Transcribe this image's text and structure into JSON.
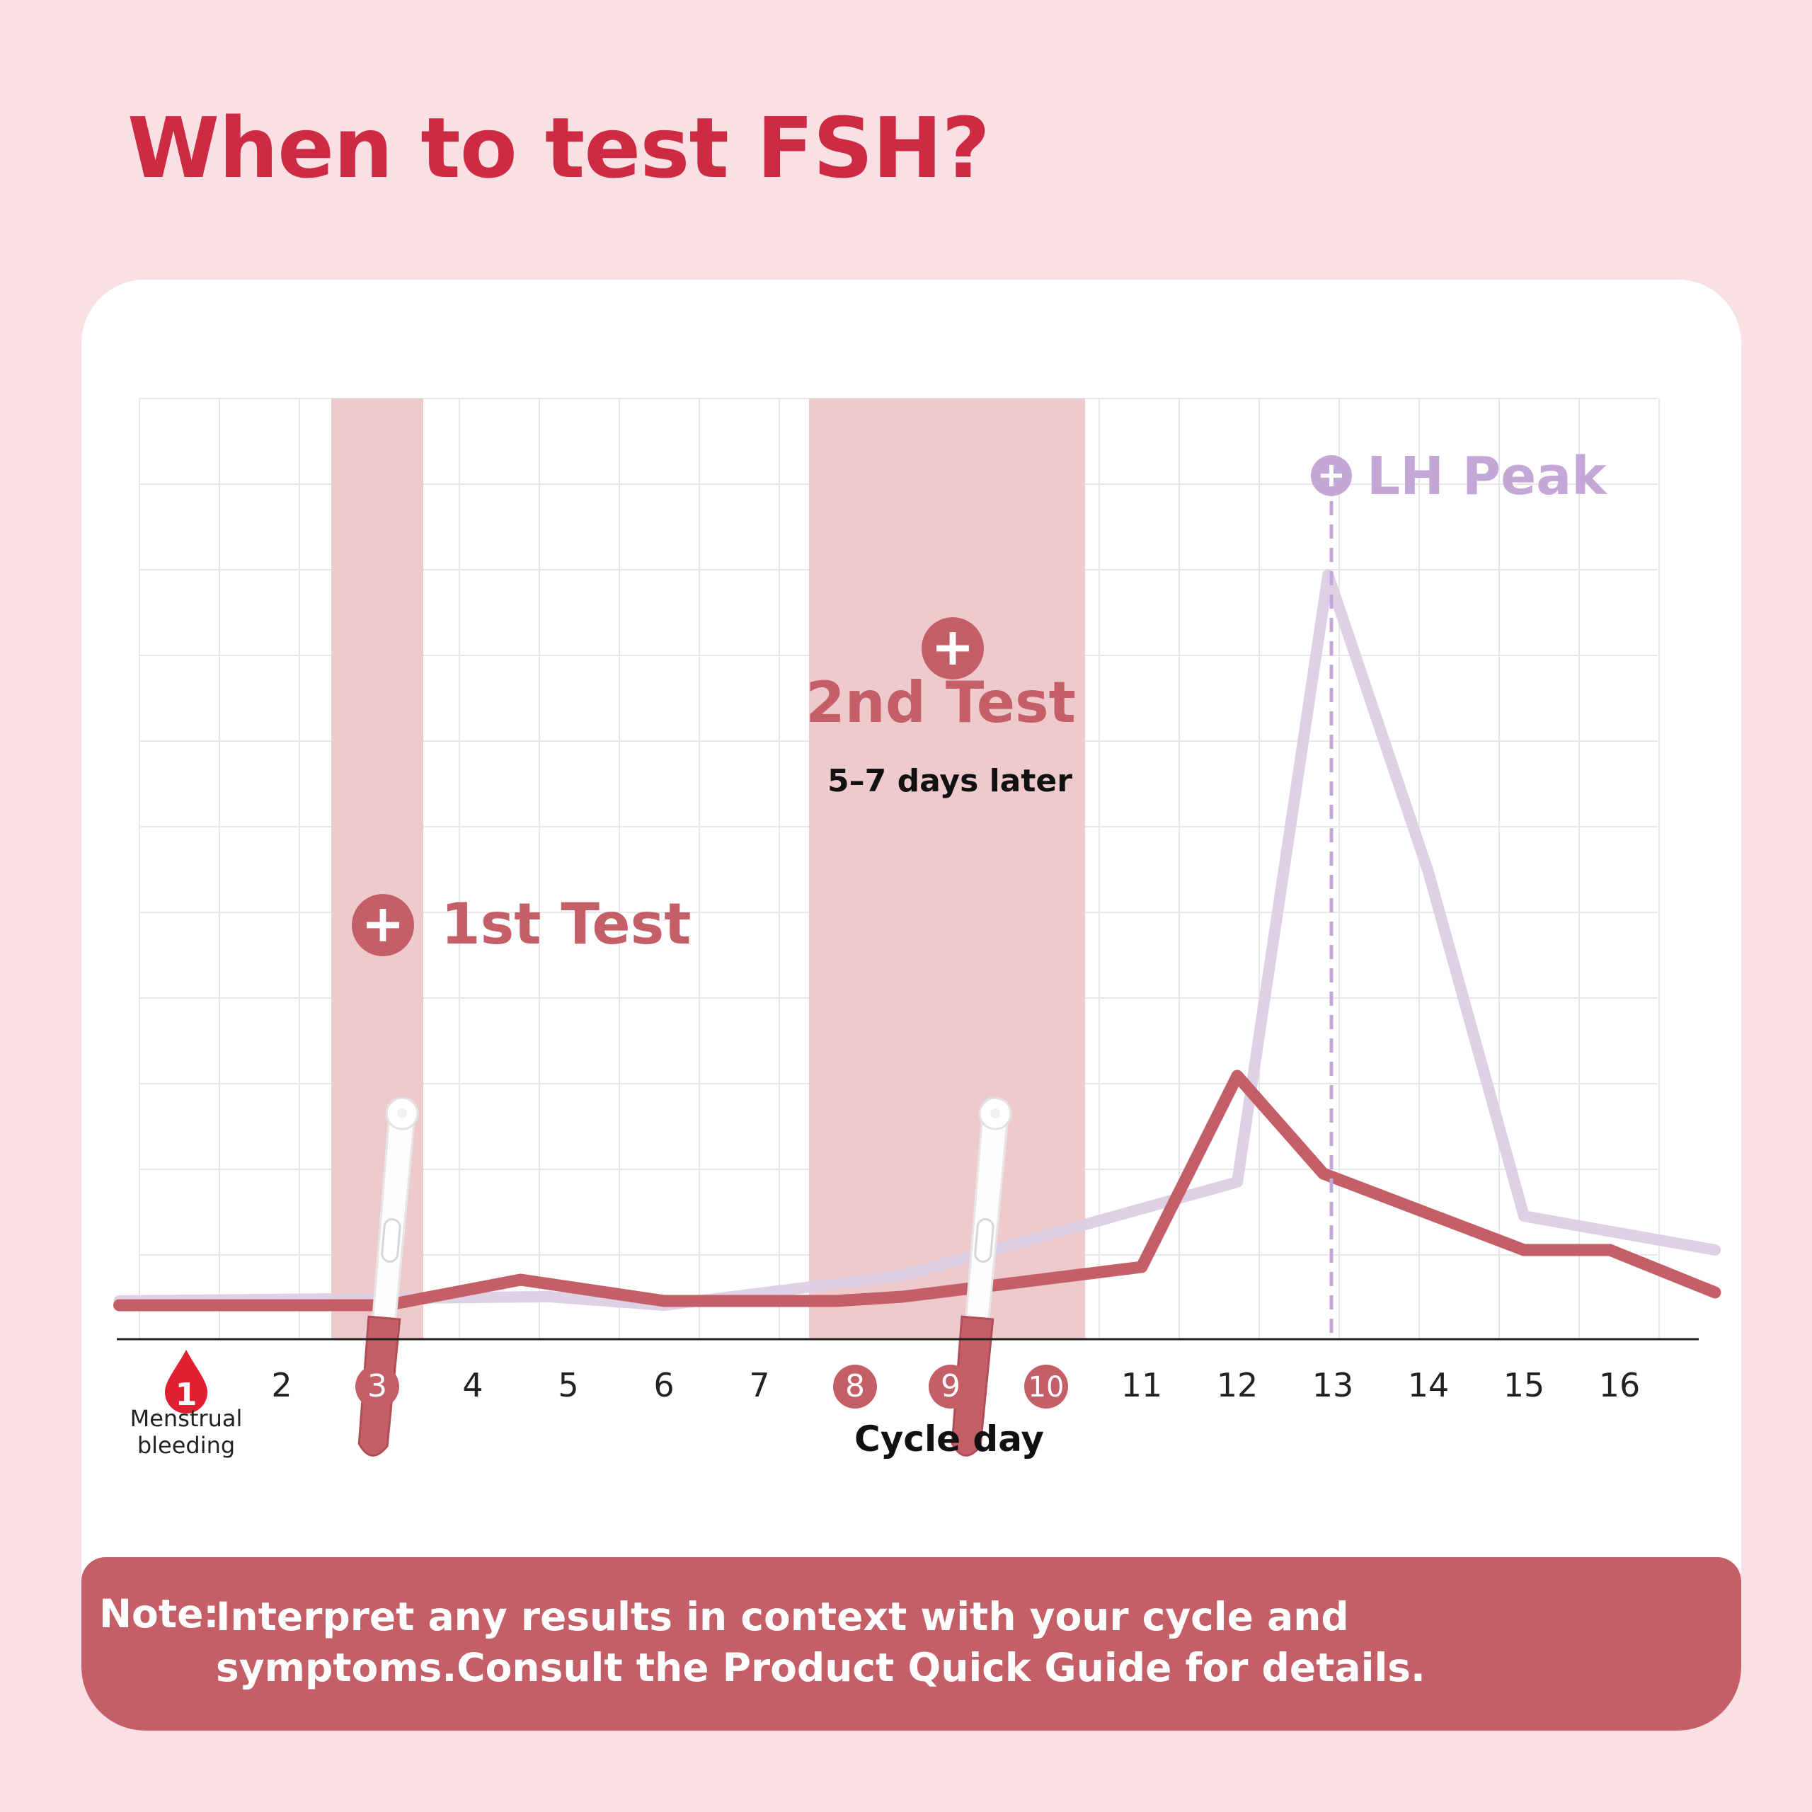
{
  "title": "When to test FSH?",
  "note": {
    "label": "Note:",
    "text": "Interpret any results in context with your cycle and symptoms.Consult  the Product Quick Guide for details."
  },
  "colors": {
    "background": "#f8e0e4",
    "title": "#cf2a43",
    "fsh_line": "#c45e67",
    "lh_line": "#dccfe4",
    "highlight_band": "#efcacd",
    "lh_label": "#c3a7d6",
    "menstrual_drop": "#e02030"
  },
  "icons": [
    "blood-drop-icon",
    "plus-circle-icon",
    "test-stick-icon"
  ],
  "annotations": {
    "first_test": "1st Test",
    "second_test": "2nd Test",
    "second_test_sub": "5–7 days later",
    "lh_peak": "LH Peak"
  },
  "chart_data": {
    "type": "line",
    "xlabel": "Cycle day",
    "x_ticks": [
      1,
      2,
      3,
      4,
      5,
      6,
      7,
      8,
      9,
      10,
      11,
      12,
      13,
      14,
      15,
      16
    ],
    "highlighted_days": [
      3,
      8,
      9,
      10
    ],
    "menstrual_day": 1,
    "menstrual_label": "Menstrual bleeding",
    "grid": true,
    "y_axis_values_shown": false,
    "test_windows": [
      {
        "label": "1st Test",
        "days": [
          3
        ]
      },
      {
        "label": "2nd Test",
        "days": [
          8,
          9,
          10
        ]
      }
    ],
    "lh_peak_day": 13,
    "series": [
      {
        "line": "FSH (dark red)",
        "x": [
          0.3,
          3.1,
          4.5,
          6.0,
          7.8,
          8.5,
          11.0,
          12.0,
          12.9,
          15.0,
          15.9,
          17.0
        ],
        "y": [
          1.4,
          1.4,
          1.7,
          1.45,
          1.45,
          1.5,
          1.85,
          4.1,
          2.95,
          2.05,
          2.05,
          1.55
        ]
      },
      {
        "line": "LH (light purple)",
        "x": [
          0.3,
          4.8,
          6.0,
          8.5,
          12.0,
          12.95,
          14.0,
          15.0,
          17.0
        ],
        "y": [
          1.45,
          1.5,
          1.4,
          1.75,
          2.85,
          10.0,
          6.5,
          2.45,
          2.05
        ]
      }
    ]
  }
}
